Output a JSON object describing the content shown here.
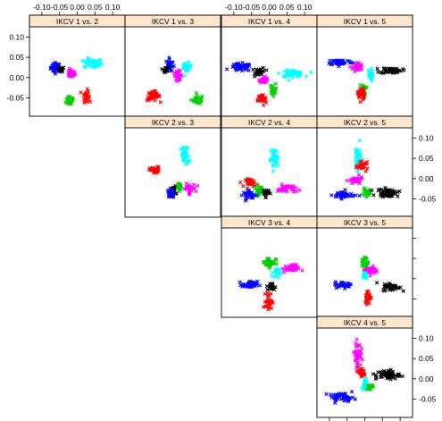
{
  "chart_data": {
    "type": "scatter",
    "marker": "x",
    "x_ticks": [
      "-0.10",
      "-0.05",
      "0.00",
      "0.05",
      "0.10"
    ],
    "x_tick_values": [
      -0.1,
      -0.05,
      0.0,
      0.05,
      0.1
    ],
    "y_ticks": [
      "-0.05",
      "0.00",
      "0.05",
      "0.10"
    ],
    "y_tick_values": [
      -0.05,
      0.0,
      0.05,
      0.1
    ],
    "xlim": [
      -0.135,
      0.135
    ],
    "ylim": [
      -0.095,
      0.125
    ],
    "group_colors": [
      "#0000ff",
      "#ff00ff",
      "#00cc00",
      "#ff0000",
      "#00ffff",
      "#000000"
    ],
    "panels": [
      {
        "title": "IKCV 1 vs. 2",
        "clusters": [
          {
            "color": "#0000ff",
            "cx": -0.06,
            "cy": 0.025,
            "sx": 0.012,
            "sy": 0.01,
            "n": 40
          },
          {
            "color": "#000000",
            "cx": -0.045,
            "cy": 0.02,
            "sx": 0.006,
            "sy": 0.005,
            "n": 18
          },
          {
            "color": "#ff00ff",
            "cx": -0.018,
            "cy": 0.01,
            "sx": 0.01,
            "sy": 0.008,
            "n": 32
          },
          {
            "color": "#00ffff",
            "cx": 0.045,
            "cy": 0.035,
            "sx": 0.022,
            "sy": 0.01,
            "n": 45
          },
          {
            "color": "#00cc00",
            "cx": -0.02,
            "cy": -0.055,
            "sx": 0.01,
            "sy": 0.012,
            "n": 32
          },
          {
            "color": "#ff0000",
            "cx": 0.025,
            "cy": -0.045,
            "sx": 0.007,
            "sy": 0.012,
            "n": 32
          }
        ]
      },
      {
        "title": "IKCV 1 vs. 3",
        "clusters": [
          {
            "color": "#0000ff",
            "cx": -0.01,
            "cy": 0.03,
            "sx": 0.008,
            "sy": 0.014,
            "n": 35
          },
          {
            "color": "#000000",
            "cx": -0.02,
            "cy": 0.02,
            "sx": 0.006,
            "sy": 0.006,
            "n": 15
          },
          {
            "color": "#00ffff",
            "cx": 0.04,
            "cy": 0.025,
            "sx": 0.01,
            "sy": 0.01,
            "n": 30
          },
          {
            "color": "#ff00ff",
            "cx": 0.015,
            "cy": 0.005,
            "sx": 0.01,
            "sy": 0.009,
            "n": 30
          },
          {
            "color": "#ff0000",
            "cx": -0.055,
            "cy": -0.045,
            "sx": 0.015,
            "sy": 0.01,
            "n": 40
          },
          {
            "color": "#00cc00",
            "cx": 0.07,
            "cy": -0.055,
            "sx": 0.014,
            "sy": 0.009,
            "n": 38
          }
        ]
      },
      {
        "title": "IKCV 1 vs. 4",
        "clusters": [
          {
            "color": "#0000ff",
            "cx": -0.08,
            "cy": 0.025,
            "sx": 0.025,
            "sy": 0.008,
            "n": 55
          },
          {
            "color": "#000000",
            "cx": -0.025,
            "cy": 0.015,
            "sx": 0.012,
            "sy": 0.008,
            "n": 30
          },
          {
            "color": "#ff00ff",
            "cx": -0.015,
            "cy": -0.005,
            "sx": 0.01,
            "sy": 0.006,
            "n": 28
          },
          {
            "color": "#00ffff",
            "cx": 0.065,
            "cy": 0.01,
            "sx": 0.028,
            "sy": 0.007,
            "n": 55
          },
          {
            "color": "#00cc00",
            "cx": 0.01,
            "cy": -0.03,
            "sx": 0.007,
            "sy": 0.012,
            "n": 25
          },
          {
            "color": "#ff0000",
            "cx": -0.02,
            "cy": -0.055,
            "sx": 0.01,
            "sy": 0.012,
            "n": 32
          }
        ]
      },
      {
        "title": "IKCV 1 vs. 5",
        "clusters": [
          {
            "color": "#0000ff",
            "cx": -0.07,
            "cy": 0.038,
            "sx": 0.03,
            "sy": 0.006,
            "n": 55
          },
          {
            "color": "#ff00ff",
            "cx": -0.02,
            "cy": 0.025,
            "sx": 0.012,
            "sy": 0.01,
            "n": 32
          },
          {
            "color": "#000000",
            "cx": 0.075,
            "cy": 0.018,
            "sx": 0.025,
            "sy": 0.006,
            "n": 55
          },
          {
            "color": "#00ffff",
            "cx": 0.015,
            "cy": 0.005,
            "sx": 0.006,
            "sy": 0.012,
            "n": 25
          },
          {
            "color": "#00cc00",
            "cx": -0.005,
            "cy": -0.03,
            "sx": 0.008,
            "sy": 0.01,
            "n": 25
          },
          {
            "color": "#ff0000",
            "cx": -0.01,
            "cy": -0.04,
            "sx": 0.008,
            "sy": 0.015,
            "n": 30
          }
        ]
      },
      {
        "title": "IKCV 2 vs. 3",
        "clusters": [
          {
            "color": "#ff0000",
            "cx": -0.05,
            "cy": 0.02,
            "sx": 0.012,
            "sy": 0.007,
            "n": 38
          },
          {
            "color": "#00ffff",
            "cx": 0.035,
            "cy": 0.055,
            "sx": 0.01,
            "sy": 0.02,
            "n": 42
          },
          {
            "color": "#000000",
            "cx": 0.0,
            "cy": -0.03,
            "sx": 0.008,
            "sy": 0.01,
            "n": 22
          },
          {
            "color": "#0000ff",
            "cx": -0.005,
            "cy": -0.035,
            "sx": 0.007,
            "sy": 0.008,
            "n": 25
          },
          {
            "color": "#ff00ff",
            "cx": 0.045,
            "cy": -0.025,
            "sx": 0.016,
            "sy": 0.01,
            "n": 35
          },
          {
            "color": "#00cc00",
            "cx": 0.02,
            "cy": -0.02,
            "sx": 0.006,
            "sy": 0.006,
            "n": 18
          }
        ]
      },
      {
        "title": "IKCV 2 vs. 4",
        "clusters": [
          {
            "color": "#00ffff",
            "cx": 0.015,
            "cy": 0.05,
            "sx": 0.01,
            "sy": 0.02,
            "n": 40
          },
          {
            "color": "#ff0000",
            "cx": -0.05,
            "cy": -0.01,
            "sx": 0.014,
            "sy": 0.008,
            "n": 32
          },
          {
            "color": "#00cc00",
            "cx": -0.03,
            "cy": -0.03,
            "sx": 0.01,
            "sy": 0.01,
            "n": 28
          },
          {
            "color": "#0000ff",
            "cx": -0.055,
            "cy": -0.04,
            "sx": 0.016,
            "sy": 0.008,
            "n": 38
          },
          {
            "color": "#000000",
            "cx": -0.01,
            "cy": -0.035,
            "sx": 0.008,
            "sy": 0.008,
            "n": 20
          },
          {
            "color": "#ff00ff",
            "cx": 0.05,
            "cy": -0.025,
            "sx": 0.022,
            "sy": 0.008,
            "n": 40
          }
        ]
      },
      {
        "title": "IKCV 2 vs. 5",
        "clusters": [
          {
            "color": "#00ffff",
            "cx": -0.02,
            "cy": 0.055,
            "sx": 0.008,
            "sy": 0.025,
            "n": 40
          },
          {
            "color": "#ff0000",
            "cx": -0.005,
            "cy": 0.03,
            "sx": 0.012,
            "sy": 0.008,
            "n": 30
          },
          {
            "color": "#ff00ff",
            "cx": -0.025,
            "cy": -0.005,
            "sx": 0.016,
            "sy": 0.008,
            "n": 35
          },
          {
            "color": "#0000ff",
            "cx": -0.06,
            "cy": -0.04,
            "sx": 0.025,
            "sy": 0.008,
            "n": 45
          },
          {
            "color": "#00cc00",
            "cx": 0.005,
            "cy": -0.035,
            "sx": 0.008,
            "sy": 0.008,
            "n": 22
          },
          {
            "color": "#000000",
            "cx": 0.065,
            "cy": -0.035,
            "sx": 0.025,
            "sy": 0.008,
            "n": 55
          }
        ]
      },
      {
        "title": "IKCV 3 vs. 4",
        "clusters": [
          {
            "color": "#00cc00",
            "cx": 0.0,
            "cy": 0.04,
            "sx": 0.016,
            "sy": 0.01,
            "n": 40
          },
          {
            "color": "#00ffff",
            "cx": 0.02,
            "cy": 0.015,
            "sx": 0.008,
            "sy": 0.01,
            "n": 25
          },
          {
            "color": "#ff00ff",
            "cx": 0.06,
            "cy": 0.025,
            "sx": 0.02,
            "sy": 0.008,
            "n": 38
          },
          {
            "color": "#0000ff",
            "cx": -0.055,
            "cy": -0.015,
            "sx": 0.018,
            "sy": 0.007,
            "n": 40
          },
          {
            "color": "#000000",
            "cx": 0.005,
            "cy": -0.02,
            "sx": 0.01,
            "sy": 0.008,
            "n": 25
          },
          {
            "color": "#ff0000",
            "cx": 0.0,
            "cy": -0.055,
            "sx": 0.008,
            "sy": 0.016,
            "n": 35
          }
        ]
      },
      {
        "title": "IKCV 3 vs. 5",
        "clusters": [
          {
            "color": "#00cc00",
            "cx": 0.0,
            "cy": 0.04,
            "sx": 0.008,
            "sy": 0.014,
            "n": 30
          },
          {
            "color": "#ff00ff",
            "cx": 0.02,
            "cy": 0.02,
            "sx": 0.014,
            "sy": 0.009,
            "n": 35
          },
          {
            "color": "#00ffff",
            "cx": 0.0,
            "cy": 0.01,
            "sx": 0.007,
            "sy": 0.008,
            "n": 22
          },
          {
            "color": "#0000ff",
            "cx": -0.06,
            "cy": -0.015,
            "sx": 0.02,
            "sy": 0.006,
            "n": 45
          },
          {
            "color": "#000000",
            "cx": 0.075,
            "cy": -0.02,
            "sx": 0.02,
            "sy": 0.008,
            "n": 45
          },
          {
            "color": "#ff0000",
            "cx": 0.01,
            "cy": -0.045,
            "sx": 0.008,
            "sy": 0.014,
            "n": 35
          }
        ]
      },
      {
        "title": "IKCV 4 vs. 5",
        "clusters": [
          {
            "color": "#ff00ff",
            "cx": -0.02,
            "cy": 0.06,
            "sx": 0.008,
            "sy": 0.025,
            "n": 45
          },
          {
            "color": "#ff0000",
            "cx": -0.01,
            "cy": 0.015,
            "sx": 0.01,
            "sy": 0.01,
            "n": 32
          },
          {
            "color": "#00ffff",
            "cx": 0.0,
            "cy": -0.01,
            "sx": 0.006,
            "sy": 0.012,
            "n": 25
          },
          {
            "color": "#00cc00",
            "cx": 0.015,
            "cy": -0.02,
            "sx": 0.006,
            "sy": 0.008,
            "n": 18
          },
          {
            "color": "#0000ff",
            "cx": -0.065,
            "cy": -0.045,
            "sx": 0.03,
            "sy": 0.008,
            "n": 50
          },
          {
            "color": "#000000",
            "cx": 0.065,
            "cy": 0.01,
            "sx": 0.028,
            "sy": 0.01,
            "n": 55
          }
        ]
      }
    ]
  }
}
